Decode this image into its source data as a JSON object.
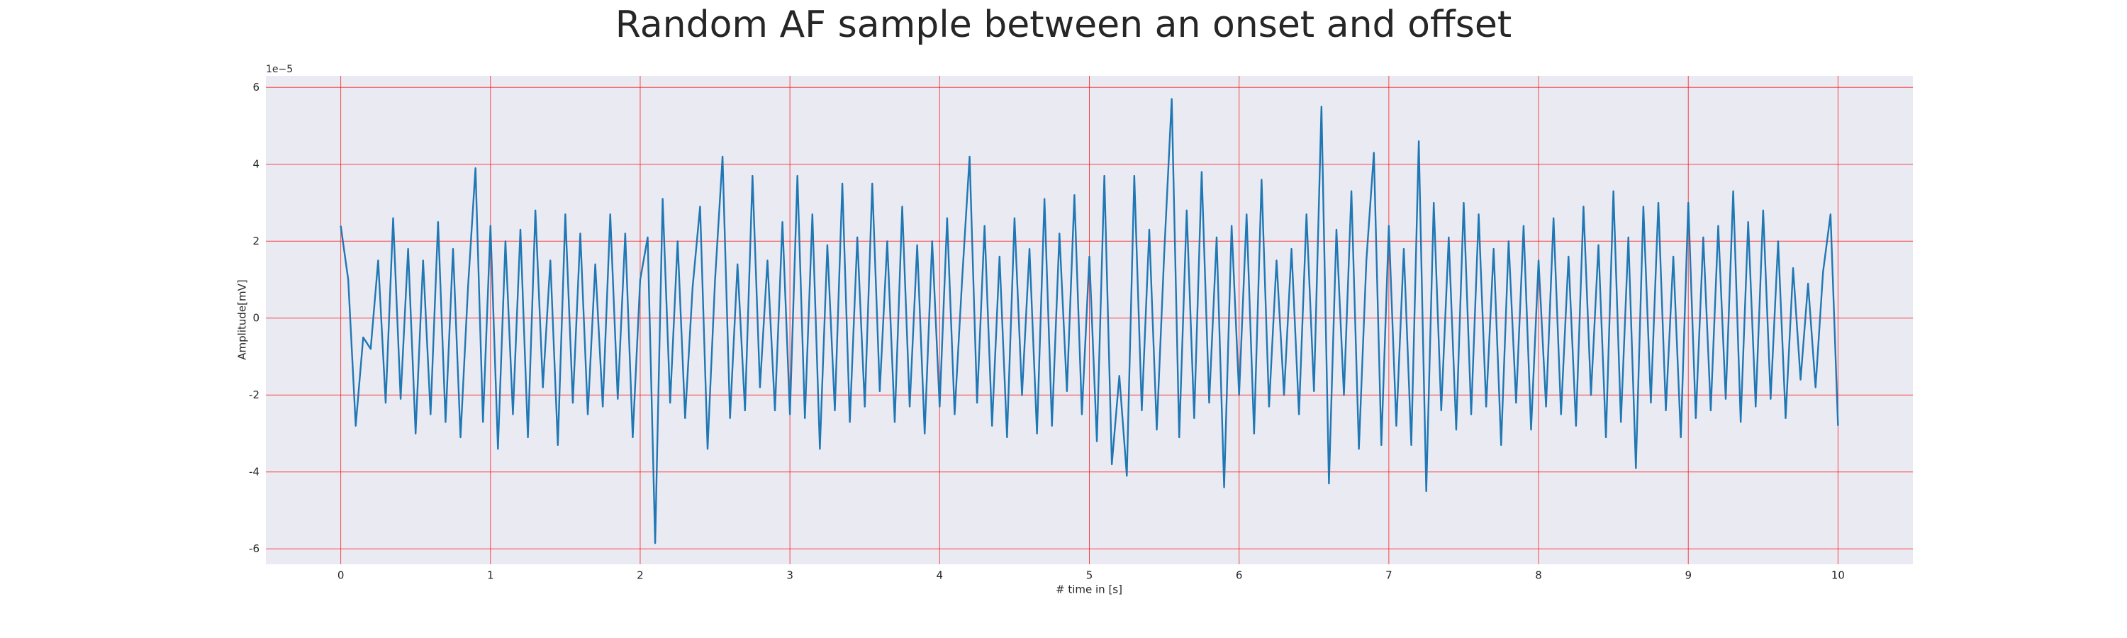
{
  "chart_data": {
    "type": "line",
    "title": "Random AF sample between an onset and offset",
    "xlabel": "# time in [s]",
    "ylabel": "Amplitude[mV]",
    "y_offset_text": "1e−5",
    "x": [
      0,
      0.05,
      0.1,
      0.15,
      0.2,
      0.25,
      0.3,
      0.35,
      0.4,
      0.45,
      0.5,
      0.55,
      0.6,
      0.65,
      0.7,
      0.75,
      0.8,
      0.85,
      0.9,
      0.95,
      1,
      1.05,
      1.1,
      1.15,
      1.2,
      1.25,
      1.3,
      1.35,
      1.4,
      1.45,
      1.5,
      1.55,
      1.6,
      1.65,
      1.7,
      1.75,
      1.8,
      1.85,
      1.9,
      1.95,
      2,
      2.05,
      2.1,
      2.15,
      2.2,
      2.25,
      2.3,
      2.35,
      2.4,
      2.45,
      2.5,
      2.55,
      2.6,
      2.65,
      2.7,
      2.75,
      2.8,
      2.85,
      2.9,
      2.95,
      3,
      3.05,
      3.1,
      3.15,
      3.2,
      3.25,
      3.3,
      3.35,
      3.4,
      3.45,
      3.5,
      3.55,
      3.6,
      3.65,
      3.7,
      3.75,
      3.8,
      3.85,
      3.9,
      3.95,
      4,
      4.05,
      4.1,
      4.15,
      4.2,
      4.25,
      4.3,
      4.35,
      4.4,
      4.45,
      4.5,
      4.55,
      4.6,
      4.65,
      4.7,
      4.75,
      4.8,
      4.85,
      4.9,
      4.95,
      5,
      5.05,
      5.1,
      5.15,
      5.2,
      5.25,
      5.3,
      5.35,
      5.4,
      5.45,
      5.5,
      5.55,
      5.6,
      5.65,
      5.7,
      5.75,
      5.8,
      5.85,
      5.9,
      5.95,
      6,
      6.05,
      6.1,
      6.15,
      6.2,
      6.25,
      6.3,
      6.35,
      6.4,
      6.45,
      6.5,
      6.55,
      6.6,
      6.65,
      6.7,
      6.75,
      6.8,
      6.85,
      6.9,
      6.95,
      7,
      7.05,
      7.1,
      7.15,
      7.2,
      7.25,
      7.3,
      7.35,
      7.4,
      7.45,
      7.5,
      7.55,
      7.6,
      7.65,
      7.7,
      7.75,
      7.8,
      7.85,
      7.9,
      7.95,
      8,
      8.05,
      8.1,
      8.15,
      8.2,
      8.25,
      8.3,
      8.35,
      8.4,
      8.45,
      8.5,
      8.55,
      8.6,
      8.65,
      8.7,
      8.75,
      8.8,
      8.85,
      8.9,
      8.95,
      9,
      9.05,
      9.1,
      9.15,
      9.2,
      9.25,
      9.3,
      9.35,
      9.4,
      9.45,
      9.5,
      9.55,
      9.6,
      9.65,
      9.7,
      9.75,
      9.8,
      9.85,
      9.9,
      9.95,
      10
    ],
    "series": [
      {
        "color": "#1f77b4",
        "values": [
          2.4,
          1.0,
          -2.8,
          -0.5,
          -0.8,
          1.5,
          -2.2,
          2.6,
          -2.1,
          1.8,
          -3.0,
          1.5,
          -2.5,
          2.5,
          -2.7,
          1.8,
          -3.1,
          0.8,
          3.9,
          -2.7,
          2.4,
          -3.4,
          2.0,
          -2.5,
          2.3,
          -3.1,
          2.8,
          -1.8,
          1.5,
          -3.3,
          2.7,
          -2.2,
          2.2,
          -2.5,
          1.4,
          -2.3,
          2.7,
          -2.1,
          2.2,
          -3.1,
          1.0,
          2.1,
          -5.85,
          3.1,
          -2.2,
          2.0,
          -2.6,
          0.8,
          2.9,
          -3.4,
          1.0,
          4.2,
          -2.6,
          1.4,
          -2.4,
          3.7,
          -1.8,
          1.5,
          -2.4,
          2.5,
          -2.5,
          3.7,
          -2.6,
          2.7,
          -3.4,
          1.9,
          -2.4,
          3.5,
          -2.7,
          2.1,
          -2.3,
          3.5,
          -1.9,
          2.0,
          -2.7,
          2.9,
          -2.3,
          1.9,
          -3.0,
          2.0,
          -2.3,
          2.6,
          -2.5,
          1.0,
          4.2,
          -2.2,
          2.4,
          -2.8,
          1.6,
          -3.1,
          2.6,
          -2.0,
          1.8,
          -3.0,
          3.1,
          -2.8,
          2.2,
          -1.9,
          3.2,
          -2.5,
          1.6,
          -3.2,
          3.7,
          -3.8,
          -1.5,
          -4.1,
          3.7,
          -2.4,
          2.3,
          -2.9,
          1.7,
          5.7,
          -3.1,
          2.8,
          -2.6,
          3.8,
          -2.2,
          2.1,
          -4.4,
          2.4,
          -2.0,
          2.7,
          -3.0,
          3.6,
          -2.3,
          1.5,
          -2.0,
          1.8,
          -2.5,
          2.7,
          -1.9,
          5.5,
          -4.3,
          2.3,
          -2.0,
          3.3,
          -3.4,
          1.5,
          4.3,
          -3.3,
          2.4,
          -2.8,
          1.8,
          -3.3,
          4.6,
          -4.5,
          3.0,
          -2.4,
          2.1,
          -2.9,
          3.0,
          -2.5,
          2.7,
          -2.3,
          1.8,
          -3.3,
          2.0,
          -2.2,
          2.4,
          -2.9,
          1.5,
          -2.3,
          2.6,
          -2.5,
          1.6,
          -2.8,
          2.9,
          -2.0,
          1.9,
          -3.1,
          3.3,
          -2.7,
          2.1,
          -3.9,
          2.9,
          -2.2,
          3.0,
          -2.4,
          1.6,
          -3.1,
          3.0,
          -2.6,
          2.1,
          -2.4,
          2.4,
          -2.1,
          3.3,
          -2.7,
          2.5,
          -2.3,
          2.8,
          -2.1,
          2.0,
          -2.6,
          1.3,
          -1.6,
          0.9,
          -1.8,
          1.2,
          2.7,
          -2.8
        ]
      }
    ],
    "xlim": [
      -0.5,
      10.5
    ],
    "ylim": [
      -6.4,
      6.3
    ],
    "xticks": [
      0,
      1,
      2,
      3,
      4,
      5,
      6,
      7,
      8,
      9,
      10
    ],
    "yticks": [
      -6,
      -4,
      -2,
      0,
      2,
      4,
      6
    ],
    "grid": true,
    "grid_color": "#ff0000",
    "background": "#eaeaf2"
  }
}
